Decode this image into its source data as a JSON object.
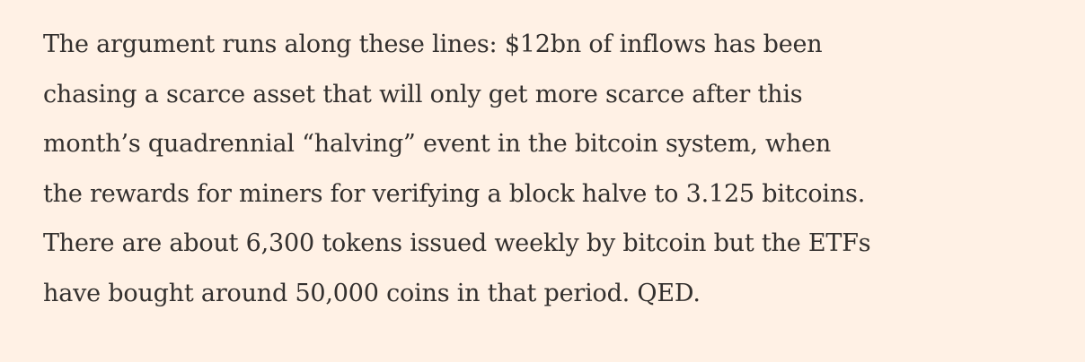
{
  "article": {
    "paragraph_lines": [
      "The argument runs along these lines: $12bn of inflows has been",
      "chasing a scarce asset that will only get more scarce after this",
      "month’s quadrennial “halving” event in the bitcoin system, when",
      "the rewards for miners for verifying a block halve to 3.125 bitcoins.",
      "There are about 6,300 tokens issued weekly by bitcoin but the ETFs",
      "have bought around 50,000 coins in that period. QED."
    ]
  }
}
